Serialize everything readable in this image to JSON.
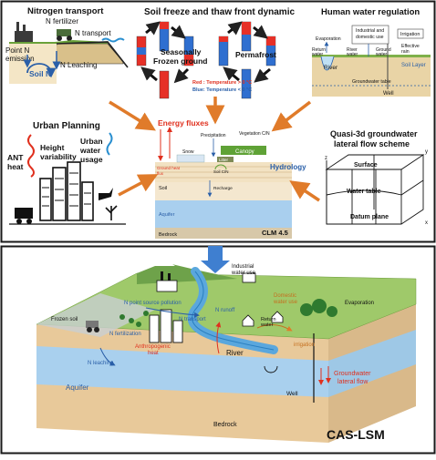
{
  "top": {
    "nitrogen": {
      "title": "Nitrogen transport",
      "fertilizer": "N fertilizer",
      "transport": "N transport",
      "point_line1": "Point N",
      "point_line2": "emission",
      "soil_n": "Soil N",
      "leaching": "N Leaching"
    },
    "freeze": {
      "title": "Soil freeze and thaw front dynamic",
      "seasonal_line1": "Seasonally",
      "seasonal_line2": "Frozen ground",
      "permafrost": "Permafrost",
      "legend_red": "Red : Temperature > 0 °C",
      "legend_blue": "Blue: Temperature < 0 °C"
    },
    "human": {
      "title": "Human water regulation",
      "evaporation": "Evaporation",
      "industrial_line1": "Industrial and",
      "industrial_line2": "domestic use",
      "irrigation": "Irrigation",
      "effective_line1": "Effective",
      "effective_line2": "rain",
      "return_line1": "Return",
      "return_line2": "water",
      "river_water_line1": "River",
      "river_water_line2": "water",
      "ground_water_line1": "Ground",
      "ground_water_line2": "water",
      "river": "River",
      "soil_layer": "Soil Layer",
      "groundwater_table": "Groundwater table",
      "well": "Well"
    },
    "urban": {
      "title": "Urban Planning",
      "ant_line1": "ANT",
      "ant_line2": "heat",
      "height_line1": "Height",
      "height_line2": "variability",
      "usage_line1": "Urban",
      "usage_line2": "water",
      "usage_line3": "usage"
    },
    "clm": {
      "energy_fluxes": "Energy fluxes",
      "precipitation": "Precipitation",
      "vegetation": "Vegetation C/N",
      "canopy": "Canopy",
      "snow": "Snow",
      "litter": "Litter",
      "ground_heat_line1": "Ground heat",
      "ground_heat_line2": "flux",
      "soil_c": "Soil C/N",
      "hydrology": "Hydrology",
      "soil": "Soil",
      "recharge": "Recharge",
      "aquifer": "Aquifer",
      "bedrock": "Bedrock",
      "model": "CLM 4.5"
    },
    "quasi": {
      "title_line1": "Quasi-3d groundwater",
      "title_line2": "lateral flow scheme",
      "surface": "Surface",
      "water_table": "Water table",
      "datum": "Datum plane",
      "axis_z": "z",
      "axis_y": "y",
      "axis_x": "x"
    }
  },
  "bottom": {
    "industrial_line1": "Industrial",
    "industrial_line2": "water use",
    "domestic_line1": "Domestic",
    "domestic_line2": "water use",
    "evaporation": "Evaporation",
    "point_source": "N point source pollution",
    "n_transport": "N  transport",
    "n_runoff": "N  runoff",
    "return_line1": "Return",
    "return_line2": "water",
    "frozen_soil": "Frozen soil",
    "n_fertilization": "N fertilization",
    "anthro_line1": "Anthropogenic",
    "anthro_line2": "heat",
    "river": "River",
    "irrigation": "irrigation",
    "n_leaching": "N  leaching",
    "aquifer": "Aquifer",
    "well": "Well",
    "gw_line1": "Groundwater",
    "gw_line2": "lateral flow",
    "bedrock": "Bedrock",
    "model": "CAS-LSM"
  },
  "colors": {
    "frame": "#1a1a1a",
    "arrow": "#e07b2a",
    "down_arrow": "#3f7fd0",
    "red_text": "#e0301e",
    "blue_text": "#2a5fa8",
    "grass": "#8dbf4f",
    "soil": "#e8c99a",
    "aquifer": "#9cc8e8",
    "bedrock": "#d6b482"
  }
}
